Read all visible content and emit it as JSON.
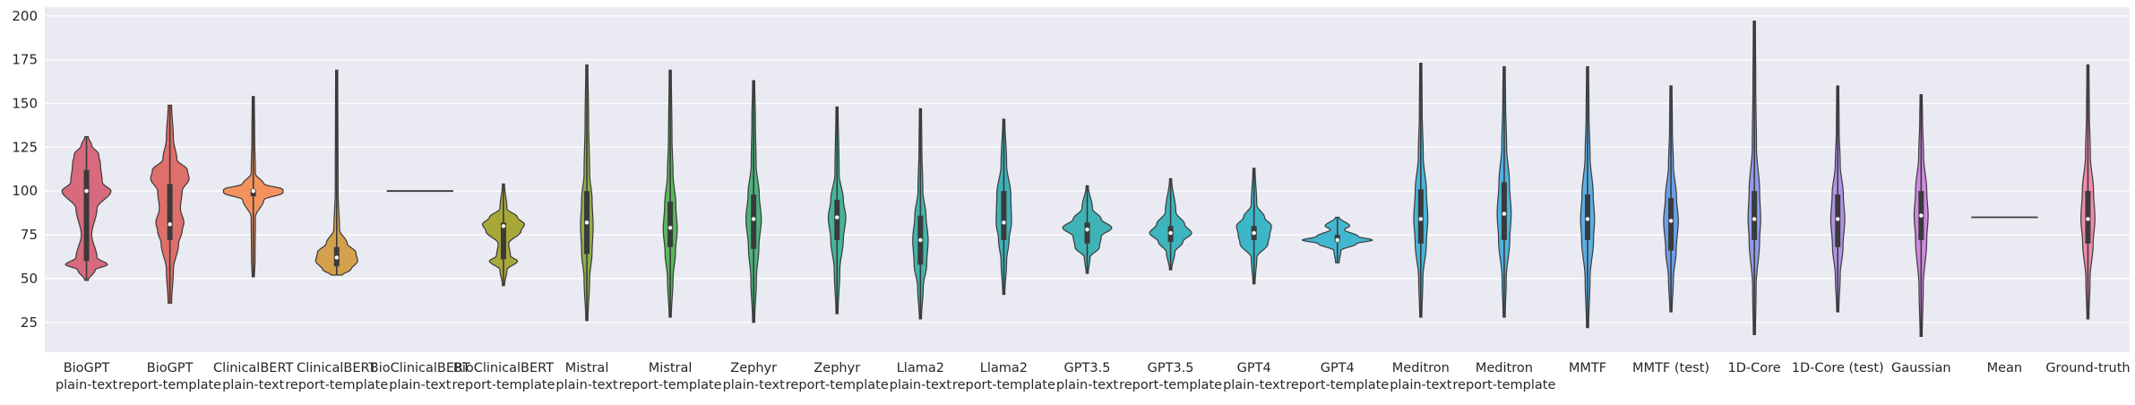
{
  "chart_data": {
    "type": "violin",
    "title": "",
    "xlabel": "",
    "ylabel": "",
    "ylim": [
      8,
      205
    ],
    "yticks": [
      25,
      50,
      75,
      100,
      125,
      150,
      175,
      200
    ],
    "grid": true,
    "background": "#eaeaf2",
    "categories": [
      {
        "line1": "BioGPT",
        "line2": "plain-text",
        "color": "#d76a7d",
        "min": 49,
        "max": 131,
        "q1": 60,
        "median": 100,
        "q3": 112,
        "mean": 100,
        "density": [
          [
            49,
            0.05
          ],
          [
            55,
            0.25
          ],
          [
            58,
            0.6
          ],
          [
            62,
            0.3
          ],
          [
            75,
            0.15
          ],
          [
            90,
            0.3
          ],
          [
            100,
            0.7
          ],
          [
            105,
            0.45
          ],
          [
            115,
            0.4
          ],
          [
            121,
            0.35
          ],
          [
            126,
            0.15
          ],
          [
            131,
            0.05
          ]
        ]
      },
      {
        "line1": "BioGPT",
        "line2": "report-template",
        "color": "#df6f6a",
        "min": 36,
        "max": 149,
        "q1": 72,
        "median": 81,
        "q3": 104,
        "mean": 81,
        "density": [
          [
            36,
            0.05
          ],
          [
            55,
            0.1
          ],
          [
            70,
            0.25
          ],
          [
            77,
            0.35
          ],
          [
            82,
            0.4
          ],
          [
            90,
            0.3
          ],
          [
            100,
            0.35
          ],
          [
            107,
            0.55
          ],
          [
            112,
            0.5
          ],
          [
            118,
            0.2
          ],
          [
            130,
            0.1
          ],
          [
            149,
            0.05
          ]
        ]
      },
      {
        "line1": "ClinicalBERT",
        "line2": "plain-text",
        "color": "#f4925f",
        "min": 51,
        "max": 154,
        "q1": 97,
        "median": 100,
        "q3": 101,
        "mean": 100,
        "density": [
          [
            51,
            0.03
          ],
          [
            60,
            0.05
          ],
          [
            85,
            0.06
          ],
          [
            95,
            0.3
          ],
          [
            99,
            0.85
          ],
          [
            101,
            0.85
          ],
          [
            104,
            0.3
          ],
          [
            110,
            0.06
          ],
          [
            130,
            0.04
          ],
          [
            154,
            0.03
          ]
        ]
      },
      {
        "line1": "ClinicalBERT",
        "line2": "report-template",
        "color": "#d4a04d",
        "min": 52,
        "max": 169,
        "q1": 57,
        "median": 62,
        "q3": 68,
        "mean": 62,
        "density": [
          [
            52,
            0.15
          ],
          [
            55,
            0.4
          ],
          [
            60,
            0.6
          ],
          [
            65,
            0.55
          ],
          [
            70,
            0.3
          ],
          [
            78,
            0.08
          ],
          [
            100,
            0.04
          ],
          [
            169,
            0.03
          ]
        ]
      },
      {
        "line1": "BioClinicalBERT",
        "line2": "plain-text",
        "color": "#c4a650",
        "min": 100,
        "max": 100,
        "q1": 100,
        "median": 100,
        "q3": 100,
        "mean": 100,
        "density": [
          [
            100,
            0.95
          ]
        ]
      },
      {
        "line1": "BioClinicalBERT",
        "line2": "report-template",
        "color": "#a8a839",
        "min": 46,
        "max": 104,
        "q1": 61,
        "median": 80,
        "q3": 82,
        "mean": 80,
        "density": [
          [
            46,
            0.03
          ],
          [
            55,
            0.1
          ],
          [
            60,
            0.4
          ],
          [
            63,
            0.2
          ],
          [
            70,
            0.15
          ],
          [
            77,
            0.5
          ],
          [
            81,
            0.6
          ],
          [
            85,
            0.4
          ],
          [
            90,
            0.1
          ],
          [
            104,
            0.03
          ]
        ]
      },
      {
        "line1": "Mistral",
        "line2": "plain-text",
        "color": "#8bb04b",
        "min": 26,
        "max": 172,
        "q1": 64,
        "median": 82,
        "q3": 100,
        "mean": 82,
        "density": [
          [
            26,
            0.03
          ],
          [
            50,
            0.08
          ],
          [
            65,
            0.15
          ],
          [
            80,
            0.18
          ],
          [
            95,
            0.15
          ],
          [
            110,
            0.08
          ],
          [
            140,
            0.05
          ],
          [
            172,
            0.03
          ]
        ]
      },
      {
        "line1": "Mistral",
        "line2": "report-template",
        "color": "#58b85a",
        "min": 28,
        "max": 169,
        "q1": 68,
        "median": 79,
        "q3": 94,
        "mean": 79,
        "density": [
          [
            28,
            0.03
          ],
          [
            50,
            0.08
          ],
          [
            65,
            0.15
          ],
          [
            78,
            0.2
          ],
          [
            92,
            0.16
          ],
          [
            110,
            0.08
          ],
          [
            130,
            0.05
          ],
          [
            169,
            0.03
          ]
        ]
      },
      {
        "line1": "Zephyr",
        "line2": "plain-text",
        "color": "#4bb37e",
        "min": 25,
        "max": 163,
        "q1": 67,
        "median": 84,
        "q3": 98,
        "mean": 84,
        "density": [
          [
            25,
            0.03
          ],
          [
            50,
            0.08
          ],
          [
            68,
            0.15
          ],
          [
            84,
            0.22
          ],
          [
            98,
            0.16
          ],
          [
            115,
            0.07
          ],
          [
            140,
            0.05
          ],
          [
            163,
            0.03
          ]
        ]
      },
      {
        "line1": "Zephyr",
        "line2": "report-template",
        "color": "#44b59a",
        "min": 30,
        "max": 148,
        "q1": 72,
        "median": 85,
        "q3": 95,
        "mean": 85,
        "density": [
          [
            30,
            0.03
          ],
          [
            55,
            0.08
          ],
          [
            72,
            0.18
          ],
          [
            85,
            0.25
          ],
          [
            95,
            0.18
          ],
          [
            110,
            0.06
          ],
          [
            148,
            0.03
          ]
        ]
      },
      {
        "line1": "Llama2",
        "line2": "plain-text",
        "color": "#45b3aa",
        "min": 27,
        "max": 147,
        "q1": 58,
        "median": 72,
        "q3": 86,
        "mean": 72,
        "density": [
          [
            27,
            0.03
          ],
          [
            45,
            0.08
          ],
          [
            58,
            0.18
          ],
          [
            72,
            0.22
          ],
          [
            86,
            0.16
          ],
          [
            100,
            0.07
          ],
          [
            125,
            0.04
          ],
          [
            147,
            0.03
          ]
        ]
      },
      {
        "line1": "Llama2",
        "line2": "report-template",
        "color": "#3eb1b8",
        "min": 41,
        "max": 141,
        "q1": 72,
        "median": 82,
        "q3": 100,
        "mean": 82,
        "density": [
          [
            41,
            0.03
          ],
          [
            60,
            0.08
          ],
          [
            72,
            0.15
          ],
          [
            82,
            0.22
          ],
          [
            98,
            0.2
          ],
          [
            115,
            0.08
          ],
          [
            141,
            0.03
          ]
        ]
      },
      {
        "line1": "GPT3.5",
        "line2": "plain-text",
        "color": "#3fb3b6",
        "min": 53,
        "max": 103,
        "q1": 70,
        "median": 78,
        "q3": 82,
        "mean": 78,
        "density": [
          [
            53,
            0.03
          ],
          [
            62,
            0.08
          ],
          [
            68,
            0.35
          ],
          [
            74,
            0.4
          ],
          [
            79,
            0.7
          ],
          [
            84,
            0.4
          ],
          [
            90,
            0.15
          ],
          [
            103,
            0.03
          ]
        ]
      },
      {
        "line1": "GPT3.5",
        "line2": "report-template",
        "color": "#3db4be",
        "min": 55,
        "max": 107,
        "q1": 71,
        "median": 76,
        "q3": 80,
        "mean": 76,
        "density": [
          [
            55,
            0.03
          ],
          [
            65,
            0.12
          ],
          [
            71,
            0.35
          ],
          [
            76,
            0.6
          ],
          [
            81,
            0.4
          ],
          [
            88,
            0.15
          ],
          [
            107,
            0.03
          ]
        ]
      },
      {
        "line1": "GPT4",
        "line2": "plain-text",
        "color": "#3db7c7",
        "min": 47,
        "max": 113,
        "q1": 72,
        "median": 76,
        "q3": 80,
        "mean": 76,
        "density": [
          [
            47,
            0.03
          ],
          [
            62,
            0.08
          ],
          [
            70,
            0.4
          ],
          [
            75,
            0.45
          ],
          [
            80,
            0.5
          ],
          [
            85,
            0.3
          ],
          [
            92,
            0.08
          ],
          [
            113,
            0.03
          ]
        ]
      },
      {
        "line1": "GPT4",
        "line2": "report-template",
        "color": "#42b8d0",
        "min": 59,
        "max": 85,
        "q1": 71,
        "median": 72,
        "q3": 75,
        "mean": 72,
        "density": [
          [
            59,
            0.05
          ],
          [
            66,
            0.1
          ],
          [
            70,
            0.55
          ],
          [
            72,
            1.0
          ],
          [
            74,
            0.6
          ],
          [
            78,
            0.2
          ],
          [
            80,
            0.35
          ],
          [
            85,
            0.05
          ]
        ]
      },
      {
        "line1": "Meditron",
        "line2": "plain-text",
        "color": "#45b7d9",
        "min": 28,
        "max": 173,
        "q1": 70,
        "median": 84,
        "q3": 101,
        "mean": 84,
        "density": [
          [
            28,
            0.03
          ],
          [
            50,
            0.06
          ],
          [
            70,
            0.16
          ],
          [
            84,
            0.2
          ],
          [
            100,
            0.16
          ],
          [
            120,
            0.07
          ],
          [
            145,
            0.04
          ],
          [
            173,
            0.03
          ]
        ]
      },
      {
        "line1": "Meditron",
        "line2": "report-template",
        "color": "#4fb3e0",
        "min": 28,
        "max": 171,
        "q1": 72,
        "median": 87,
        "q3": 105,
        "mean": 87,
        "density": [
          [
            28,
            0.03
          ],
          [
            50,
            0.06
          ],
          [
            72,
            0.16
          ],
          [
            87,
            0.2
          ],
          [
            105,
            0.15
          ],
          [
            125,
            0.07
          ],
          [
            150,
            0.04
          ],
          [
            171,
            0.03
          ]
        ]
      },
      {
        "line1": "MMTF",
        "line2": "",
        "color": "#5aaee6",
        "min": 22,
        "max": 171,
        "q1": 72,
        "median": 84,
        "q3": 98,
        "mean": 84,
        "density": [
          [
            22,
            0.03
          ],
          [
            50,
            0.07
          ],
          [
            72,
            0.17
          ],
          [
            84,
            0.2
          ],
          [
            98,
            0.16
          ],
          [
            120,
            0.07
          ],
          [
            145,
            0.04
          ],
          [
            171,
            0.03
          ]
        ]
      },
      {
        "line1": "MMTF (test)",
        "line2": "",
        "color": "#6a9fe8",
        "min": 31,
        "max": 160,
        "q1": 66,
        "median": 83,
        "q3": 96,
        "mean": 83,
        "density": [
          [
            31,
            0.03
          ],
          [
            50,
            0.07
          ],
          [
            66,
            0.15
          ],
          [
            83,
            0.21
          ],
          [
            96,
            0.16
          ],
          [
            115,
            0.07
          ],
          [
            135,
            0.04
          ],
          [
            160,
            0.03
          ]
        ]
      },
      {
        "line1": "1D-Core",
        "line2": "",
        "color": "#8f9ce9",
        "min": 18,
        "max": 197,
        "q1": 72,
        "median": 84,
        "q3": 100,
        "mean": 84,
        "density": [
          [
            18,
            0.03
          ],
          [
            45,
            0.05
          ],
          [
            72,
            0.15
          ],
          [
            84,
            0.18
          ],
          [
            100,
            0.15
          ],
          [
            125,
            0.06
          ],
          [
            160,
            0.04
          ],
          [
            197,
            0.03
          ]
        ]
      },
      {
        "line1": "1D-Core (test)",
        "line2": "",
        "color": "#b092e6",
        "min": 31,
        "max": 160,
        "q1": 68,
        "median": 84,
        "q3": 98,
        "mean": 84,
        "density": [
          [
            31,
            0.03
          ],
          [
            52,
            0.07
          ],
          [
            68,
            0.15
          ],
          [
            84,
            0.2
          ],
          [
            98,
            0.16
          ],
          [
            115,
            0.07
          ],
          [
            135,
            0.04
          ],
          [
            160,
            0.03
          ]
        ]
      },
      {
        "line1": "Gaussian",
        "line2": "",
        "color": "#cf89e0",
        "min": 17,
        "max": 155,
        "q1": 72,
        "median": 86,
        "q3": 100,
        "mean": 86,
        "density": [
          [
            17,
            0.03
          ],
          [
            45,
            0.06
          ],
          [
            72,
            0.16
          ],
          [
            86,
            0.2
          ],
          [
            100,
            0.16
          ],
          [
            120,
            0.07
          ],
          [
            140,
            0.04
          ],
          [
            155,
            0.03
          ]
        ]
      },
      {
        "line1": "Mean",
        "line2": "",
        "color": "#e085cc",
        "min": 85,
        "max": 85,
        "q1": 85,
        "median": 85,
        "q3": 85,
        "mean": 85,
        "density": [
          [
            85,
            0.95
          ]
        ]
      },
      {
        "line1": "Ground-truth",
        "line2": "",
        "color": "#f08aab",
        "min": 27,
        "max": 172,
        "q1": 70,
        "median": 84,
        "q3": 100,
        "mean": 84,
        "density": [
          [
            27,
            0.03
          ],
          [
            50,
            0.06
          ],
          [
            70,
            0.15
          ],
          [
            84,
            0.2
          ],
          [
            100,
            0.16
          ],
          [
            120,
            0.07
          ],
          [
            145,
            0.04
          ],
          [
            172,
            0.03
          ]
        ]
      }
    ]
  }
}
